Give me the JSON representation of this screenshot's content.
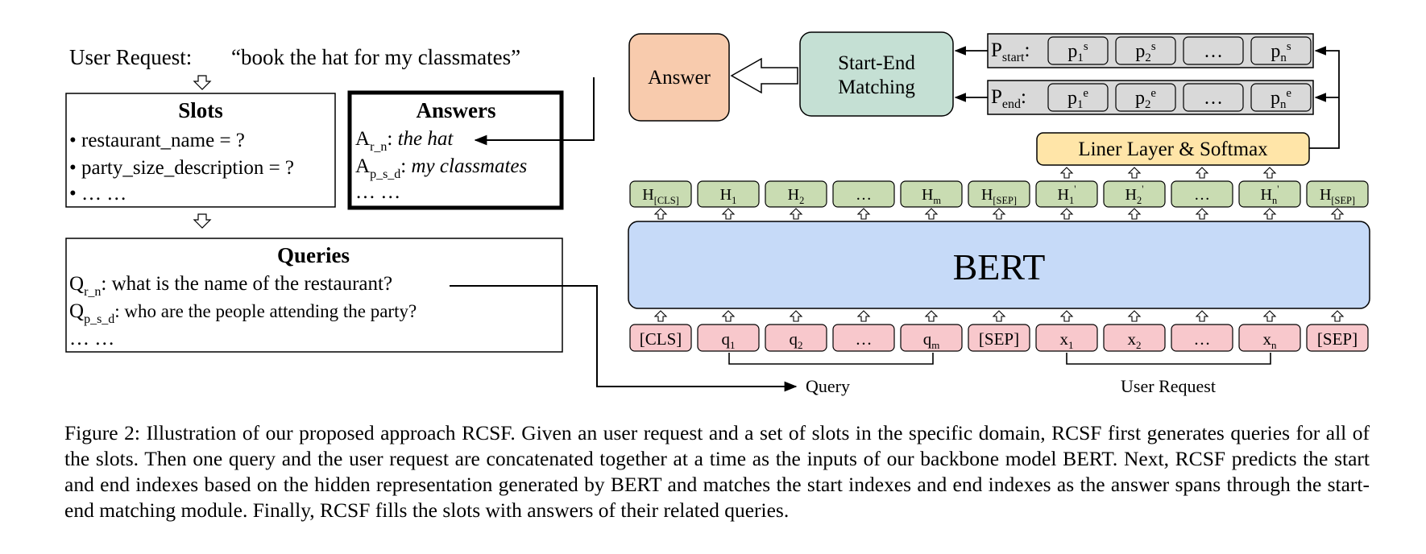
{
  "user_request": {
    "label": "User Request:",
    "text": "“book the hat for my classmates”"
  },
  "slots": {
    "title": "Slots",
    "items": [
      "• restaurant_name = ?",
      "• party_size_description = ?",
      "• … …"
    ]
  },
  "answers": {
    "title": "Answers",
    "items": [
      {
        "sym": "A",
        "sub": "r_n",
        "text": "the hat"
      },
      {
        "sym": "A",
        "sub": "p_s_d",
        "text": "my classmates"
      }
    ],
    "ellipsis": "… …"
  },
  "queries": {
    "title": "Queries",
    "items": [
      {
        "sym": "Q",
        "sub": "r_n",
        "text": ": what is the name of the restaurant?"
      },
      {
        "sym": "Q",
        "sub": "p_s_d",
        "text": ": who are the people attending the party?"
      }
    ],
    "ellipsis": "… …"
  },
  "model": {
    "answer_label": "Answer",
    "matching_label": [
      "Start-End",
      "Matching"
    ],
    "p_start": {
      "sym": "P",
      "sub": "start",
      "tokens": [
        [
          "p",
          "1",
          "s"
        ],
        [
          "p",
          "2",
          "s"
        ],
        [
          "…",
          "",
          ""
        ],
        [
          "p",
          "n",
          "s"
        ]
      ]
    },
    "p_end": {
      "sym": "P",
      "sub": "end",
      "tokens": [
        [
          "p",
          "1",
          "e"
        ],
        [
          "p",
          "2",
          "e"
        ],
        [
          "…",
          "",
          ""
        ],
        [
          "p",
          "n",
          "e"
        ]
      ]
    },
    "linear_label": "Liner Layer & Softmax",
    "bert_label": "BERT",
    "hidden": [
      [
        "H",
        "[CLS]",
        ""
      ],
      [
        "H",
        "1",
        ""
      ],
      [
        "H",
        "2",
        ""
      ],
      [
        "…",
        "",
        ""
      ],
      [
        "H",
        "m",
        ""
      ],
      [
        "H",
        "[SEP]",
        ""
      ],
      [
        "H",
        "1",
        "'"
      ],
      [
        "H",
        "2",
        "'"
      ],
      [
        "…",
        "",
        ""
      ],
      [
        "H",
        "n",
        "'"
      ],
      [
        "H",
        "[SEP]",
        ""
      ]
    ],
    "inputs": [
      [
        "[CLS]",
        ""
      ],
      [
        "q",
        "1"
      ],
      [
        "q",
        "2"
      ],
      [
        "…",
        ""
      ],
      [
        "q",
        "m"
      ],
      [
        "[SEP]",
        ""
      ],
      [
        "x",
        "1"
      ],
      [
        "x",
        "2"
      ],
      [
        "…",
        ""
      ],
      [
        "x",
        "n"
      ],
      [
        "[SEP]",
        ""
      ]
    ],
    "query_label": "Query",
    "user_request_label": "User Request"
  },
  "colors": {
    "answer_fill": "#f8cbad",
    "matching_fill": "#c5e0d4",
    "p_row_fill": "#d9d9d9",
    "linear_fill": "#ffe5a8",
    "hidden_fill": "#c9dcb2",
    "bert_fill": "#c6daf8",
    "input_fill": "#f8c8cc"
  },
  "caption": "Figure 2: Illustration of our proposed approach RCSF. Given an user request and a set of slots in the specific domain, RCSF first generates queries for all of the slots. Then one query and the user request are concatenated together at a time as the inputs of our backbone model BERT. Next, RCSF predicts the start and end indexes based on the hidden representation generated by BERT and matches the start indexes and end indexes as the answer spans through the start-end matching module. Finally, RCSF fills the slots with answers of their related queries."
}
